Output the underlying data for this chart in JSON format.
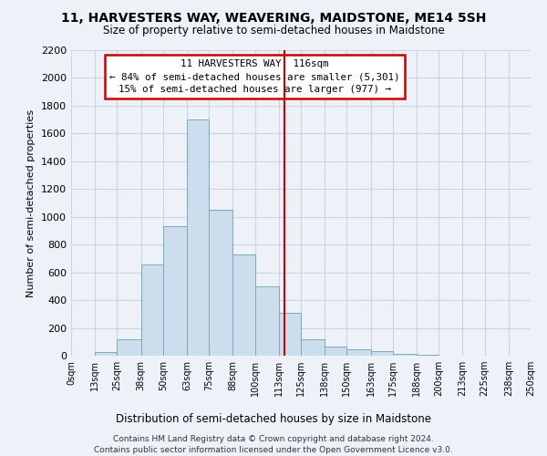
{
  "title": "11, HARVESTERS WAY, WEAVERING, MAIDSTONE, ME14 5SH",
  "subtitle": "Size of property relative to semi-detached houses in Maidstone",
  "xlabel": "Distribution of semi-detached houses by size in Maidstone",
  "ylabel": "Number of semi-detached properties",
  "footer_line1": "Contains HM Land Registry data © Crown copyright and database right 2024.",
  "footer_line2": "Contains public sector information licensed under the Open Government Licence v3.0.",
  "annotation_title": "11 HARVESTERS WAY: 116sqm",
  "annotation_line1": "← 84% of semi-detached houses are smaller (5,301)",
  "annotation_line2": "15% of semi-detached houses are larger (977) →",
  "property_size": 116,
  "bins": [
    0,
    13,
    25,
    38,
    50,
    63,
    75,
    88,
    100,
    113,
    125,
    138,
    150,
    163,
    175,
    188,
    200,
    213,
    225,
    238,
    250
  ],
  "counts": [
    0,
    25,
    120,
    660,
    930,
    1700,
    1050,
    730,
    500,
    310,
    120,
    65,
    45,
    35,
    10,
    5,
    0,
    0,
    0,
    0
  ],
  "bar_color": "#ccdded",
  "bar_edge_color": "#7aaabb",
  "vline_color": "#cc0000",
  "annotation_box_color": "#cc0000",
  "grid_color": "#c8d4e4",
  "background_color": "#eef2f8",
  "ylim": [
    0,
    2200
  ],
  "yticks": [
    0,
    200,
    400,
    600,
    800,
    1000,
    1200,
    1400,
    1600,
    1800,
    2000,
    2200
  ]
}
